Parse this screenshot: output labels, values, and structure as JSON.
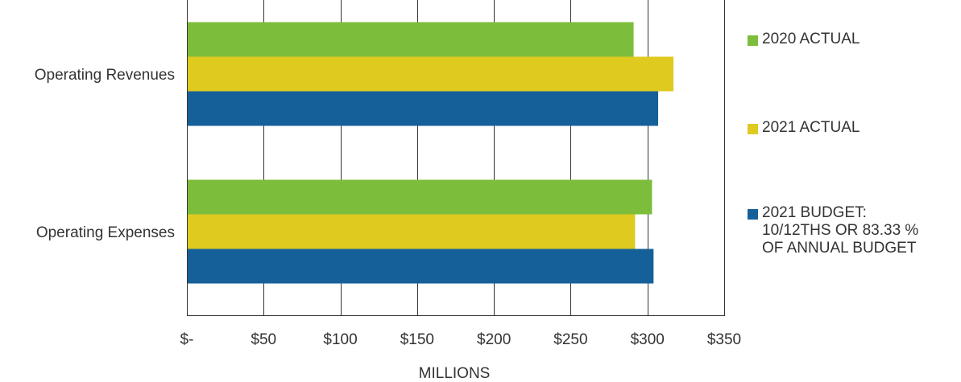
{
  "chart_data": {
    "type": "bar",
    "orientation": "horizontal",
    "categories": [
      "Operating Revenues",
      "Operating Expenses"
    ],
    "series": [
      {
        "name": "2020 ACTUAL",
        "color": "#7dbd3c",
        "values": [
          291,
          303
        ]
      },
      {
        "name": "2021 ACTUAL",
        "color": "#dfca1f",
        "values": [
          317,
          292
        ]
      },
      {
        "name": "2021 BUDGET:\n10/12THS OR 83.33 %\nOF ANNUAL BUDGET",
        "color": "#16609a",
        "values": [
          307,
          304
        ]
      }
    ],
    "xlabel": "MILLIONS",
    "xlim": [
      0,
      350
    ],
    "x_ticks": [
      {
        "value": 0,
        "label": "$-"
      },
      {
        "value": 50,
        "label": "$50"
      },
      {
        "value": 100,
        "label": "$100"
      },
      {
        "value": 150,
        "label": "$150"
      },
      {
        "value": 200,
        "label": "$200"
      },
      {
        "value": 250,
        "label": "$250"
      },
      {
        "value": 300,
        "label": "$300"
      },
      {
        "value": 350,
        "label": "$350"
      }
    ],
    "grid": "vertical",
    "legend_position": "right"
  }
}
